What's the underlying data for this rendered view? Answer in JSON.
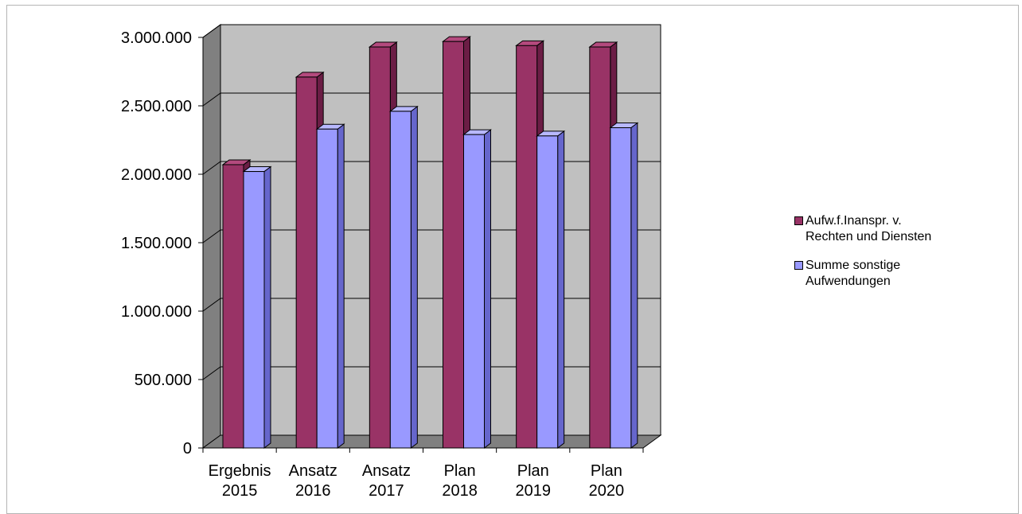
{
  "chart_data": {
    "type": "bar",
    "categories": [
      "Ergebnis 2015",
      "Ansatz 2016",
      "Ansatz 2017",
      "Plan 2018",
      "Plan 2019",
      "Plan 2020"
    ],
    "category_lines": [
      [
        "Ergebnis",
        "2015"
      ],
      [
        "Ansatz",
        "2016"
      ],
      [
        "Ansatz",
        "2017"
      ],
      [
        "Plan",
        "2018"
      ],
      [
        "Plan",
        "2019"
      ],
      [
        "Plan",
        "2020"
      ]
    ],
    "series": [
      {
        "name": "Aufw.f.Inanspr. v. Rechten und Diensten",
        "name_lines": [
          "Aufw.f.Inanspr. v.",
          "Rechten und Diensten"
        ],
        "values": [
          2070000,
          2710000,
          2930000,
          2970000,
          2940000,
          2930000
        ]
      },
      {
        "name": "Summe sonstige Aufwendungen",
        "name_lines": [
          "Summe sonstige",
          "Aufwendungen"
        ],
        "values": [
          2020000,
          2330000,
          2460000,
          2290000,
          2280000,
          2340000
        ]
      }
    ],
    "yticks": [
      0,
      500000,
      1000000,
      1500000,
      2000000,
      2500000,
      3000000
    ],
    "ytick_labels": [
      "0",
      "500.000",
      "1.000.000",
      "1.500.000",
      "2.000.000",
      "2.500.000",
      "3.000.000"
    ],
    "ylim": [
      0,
      3000000
    ],
    "grid": true,
    "legend_position": "right",
    "colors": {
      "series1_front": "#993366",
      "series1_side": "#6b1d45",
      "series1_top": "#b44a7e",
      "series2_front": "#9999ff",
      "series2_side": "#6666cc",
      "series2_top": "#b8b8ff",
      "wall": "#c0c0c0",
      "side_wall": "#808080",
      "floor": "#808080",
      "grid": "#000000"
    }
  }
}
